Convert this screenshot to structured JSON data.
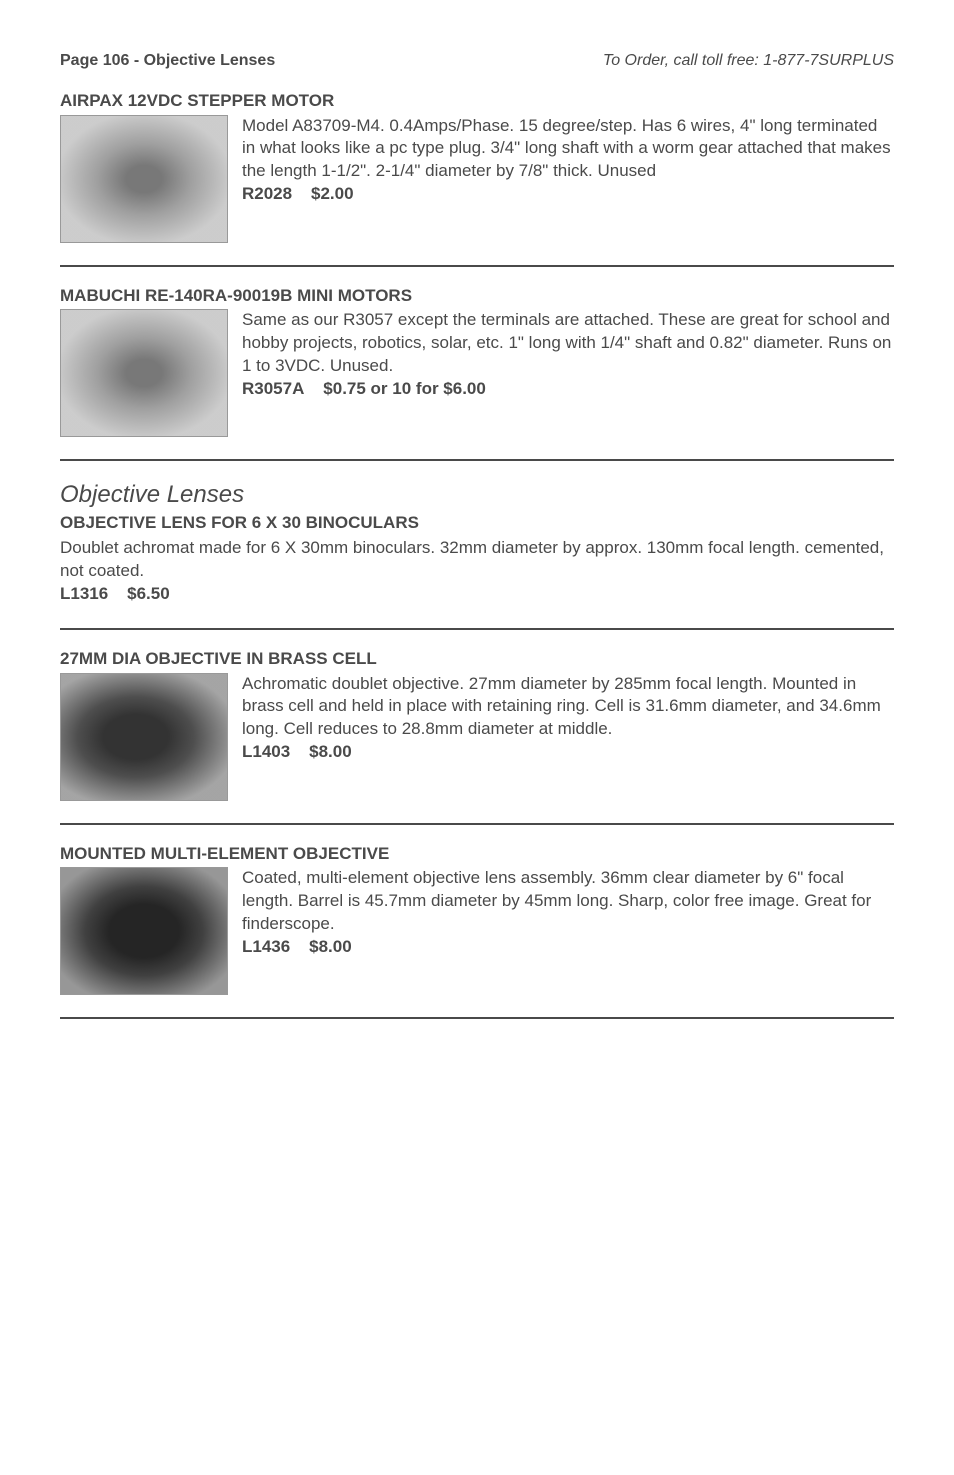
{
  "header": {
    "left": "Page 106 - Objective Lenses",
    "right": "To Order, call toll free: 1-877-7SURPLUS"
  },
  "section_title": "Objective Lenses",
  "entries": [
    {
      "id": "airpax",
      "title": "AIRPAX 12VDC STEPPER MOTOR",
      "has_image": true,
      "desc": "Model A83709-M4.  0.4Amps/Phase.  15 degree/step.  Has 6 wires, 4\" long terminated in what looks like a pc type plug.  3/4\" long shaft with a worm gear attached that makes the length 1-1/2\".  2-1/4\" diameter by 7/8\" thick.  Unused",
      "sku": "R2028",
      "price": "$2.00"
    },
    {
      "id": "mabuchi",
      "title": "MABUCHI RE-140RA-90019B MINI MOTORS",
      "has_image": true,
      "desc": "Same as our R3057 except the terminals are attached.  These are great for school and hobby projects, robotics, solar, etc.  1\" long with 1/4\" shaft and 0.82\" diameter. Runs on 1 to 3VDC.  Unused.",
      "sku": "R3057A",
      "price": "$0.75 or 10 for $6.00"
    },
    {
      "id": "obj-6x30",
      "title": "OBJECTIVE LENS FOR 6 X 30 BINOCULARS",
      "has_image": false,
      "desc": "Doublet achromat made for 6 X 30mm binoculars.  32mm diameter by approx. 130mm focal length. cemented, not coated.",
      "sku": "L1316",
      "price": "$6.50"
    },
    {
      "id": "27mm",
      "title": "27MM DIA OBJECTIVE IN BRASS CELL",
      "has_image": true,
      "desc": "Achromatic doublet objective.  27mm diameter by 285mm focal length.  Mounted in brass cell and held in place with retaining ring.  Cell is 31.6mm diameter, and 34.6mm long.  Cell reduces to 28.8mm diameter at middle.",
      "sku": "L1403",
      "price": "$8.00"
    },
    {
      "id": "multi",
      "title": "MOUNTED MULTI-ELEMENT OBJECTIVE",
      "has_image": true,
      "desc": "Coated, multi-element objective lens assembly.  36mm clear diameter by 6\" focal length.  Barrel is 45.7mm diameter by 45mm long.  Sharp, color free image.  Great for finderscope.",
      "sku": "L1436",
      "price": "$8.00"
    }
  ]
}
